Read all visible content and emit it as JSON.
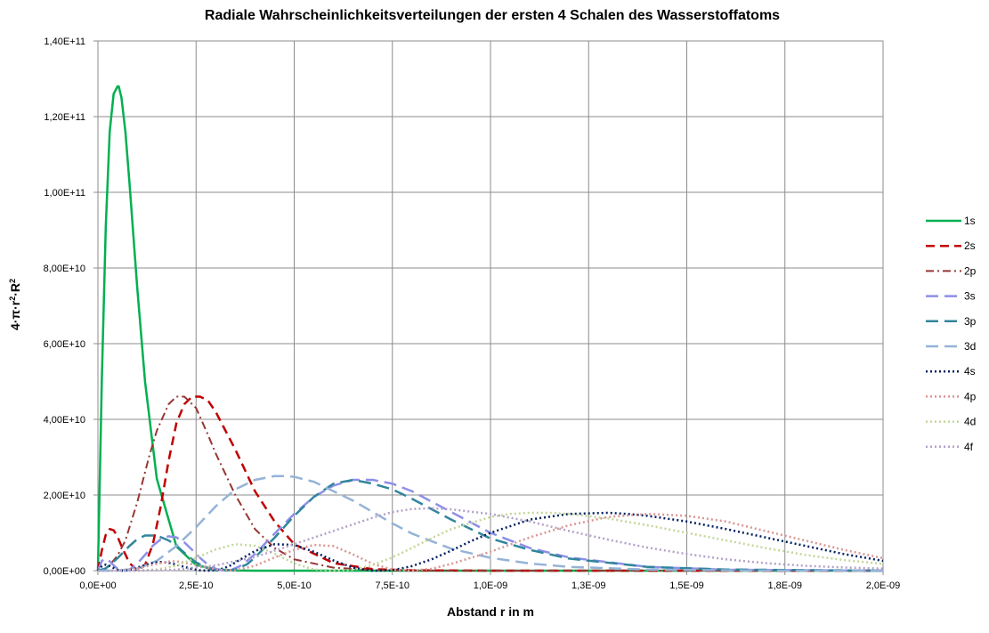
{
  "chart_data": {
    "type": "line",
    "title": "Radiale Wahrscheinlichkeitsverteilungen der ersten 4 Schalen des Wasserstoffatoms",
    "xlabel": "Abstand r in m",
    "ylabel_parts": [
      "4·π·r",
      "2",
      "·R",
      "2"
    ],
    "xlim": [
      0,
      2e-09
    ],
    "ylim": [
      0,
      140000000000.0
    ],
    "grid": true,
    "legend_position": "right",
    "x_ticks": [
      {
        "value": 0,
        "label": "0,0E+00"
      },
      {
        "value": 2.5e-10,
        "label": "2,5E-10"
      },
      {
        "value": 5e-10,
        "label": "5,0E-10"
      },
      {
        "value": 7.5e-10,
        "label": "7,5E-10"
      },
      {
        "value": 1e-09,
        "label": "1,0E-09"
      },
      {
        "value": 1.25e-09,
        "label": "1,3E-09"
      },
      {
        "value": 1.5e-09,
        "label": "1,5E-09"
      },
      {
        "value": 1.75e-09,
        "label": "1,8E-09"
      },
      {
        "value": 2e-09,
        "label": "2,0E-09"
      }
    ],
    "y_ticks": [
      {
        "value": 0,
        "label": "0,00E+00"
      },
      {
        "value": 20000000000.0,
        "label": "2,00E+10"
      },
      {
        "value": 40000000000.0,
        "label": "4,00E+10"
      },
      {
        "value": 60000000000.0,
        "label": "6,00E+10"
      },
      {
        "value": 80000000000.0,
        "label": "8,00E+10"
      },
      {
        "value": 100000000000.0,
        "label": "1,00E+11"
      },
      {
        "value": 120000000000.0,
        "label": "1,20E+11"
      },
      {
        "value": 140000000000.0,
        "label": "1,40E+11"
      }
    ],
    "series": [
      {
        "name": "1s",
        "color": "#00b050",
        "dash": "",
        "width": 2.5,
        "x": [
          0,
          1e-11,
          2e-11,
          3e-11,
          4e-11,
          5e-11,
          5.3e-11,
          6e-11,
          7e-11,
          8e-11,
          1e-10,
          1.2e-10,
          1.5e-10,
          2e-10,
          2.5e-10,
          3e-10,
          3.5e-10,
          4e-10,
          5e-10,
          7.5e-10,
          1e-09,
          2e-09
        ],
        "values": [
          0,
          50700000000.0,
          90900000000.0,
          116000000000.0,
          126000000000.0,
          128000000000.0,
          128000000000.0,
          125000000000.0,
          116000000000.0,
          103000000000.0,
          75000000000.0,
          50000000000.0,
          24300000000.0,
          6400000000.0,
          1500000000.0,
          320000000.0,
          60000000.0,
          10000000.0,
          0,
          0,
          0,
          0
        ]
      },
      {
        "name": "2s",
        "color": "#c00000",
        "dash": "10,6",
        "width": 2.5,
        "x": [
          0,
          1e-11,
          2e-11,
          3e-11,
          4e-11,
          5e-11,
          6e-11,
          8e-11,
          1e-10,
          1.2e-10,
          1.4e-10,
          1.6e-10,
          1.8e-10,
          2e-10,
          2.2e-10,
          2.4e-10,
          2.6e-10,
          2.8e-10,
          3e-10,
          3.5e-10,
          4e-10,
          4.5e-10,
          5e-10,
          6e-10,
          7e-10,
          8e-10,
          1e-09,
          2e-09
        ],
        "values": [
          0,
          5400000000.0,
          9500000000.0,
          11000000000.0,
          10700000000.0,
          9000000000.0,
          6500000000.0,
          2100000000.0,
          0,
          1500000000.0,
          7000000000.0,
          17000000000.0,
          29000000000.0,
          39000000000.0,
          44000000000.0,
          46000000000.0,
          46000000000.0,
          45000000000.0,
          42000000000.0,
          32000000000.0,
          21000000000.0,
          13000000000.0,
          7000000000.0,
          2000000000.0,
          400000000.0,
          100000000.0,
          0,
          0
        ]
      },
      {
        "name": "2p",
        "color": "#953735",
        "dash": "9,4,2,4",
        "width": 2,
        "x": [
          0,
          2e-11,
          5e-11,
          7e-11,
          1e-10,
          1.3e-10,
          1.5e-10,
          1.8e-10,
          2e-10,
          2.2e-10,
          2.5e-10,
          2.8e-10,
          3e-10,
          3.5e-10,
          4e-10,
          4.5e-10,
          5e-10,
          6e-10,
          7e-10,
          8e-10,
          1e-09,
          2e-09
        ],
        "values": [
          0,
          200000000.0,
          4000000000.0,
          8000000000.0,
          18000000000.0,
          30000000000.0,
          37000000000.0,
          44000000000.0,
          46000000000.0,
          46000000000.0,
          43000000000.0,
          36000000000.0,
          31000000000.0,
          20000000000.0,
          11000000000.0,
          6000000000.0,
          3000000000.0,
          800000000.0,
          150000000.0,
          30000000.0,
          0,
          0
        ]
      },
      {
        "name": "3s",
        "color": "#8e8ee8",
        "dash": "14,7",
        "width": 2.5,
        "x": [
          0,
          1e-11,
          2e-11,
          3e-11,
          4e-11,
          5e-11,
          6e-11,
          7e-11,
          8e-11,
          1e-10,
          1.2e-10,
          1.4e-10,
          1.6e-10,
          1.8e-10,
          2e-10,
          2.2e-10,
          2.4e-10,
          2.6e-10,
          2.8e-10,
          3e-10,
          3.2e-10,
          3.4e-10,
          3.6e-10,
          3.8e-10,
          4e-10,
          4.5e-10,
          5e-10,
          5.5e-10,
          6e-10,
          6.5e-10,
          7e-10,
          7.5e-10,
          8e-10,
          9e-10,
          1e-09,
          1.1e-09,
          1.2e-09,
          1.4e-09,
          1.6e-09,
          2e-09
        ],
        "values": [
          0,
          2600000000.0,
          3200000000.0,
          2500000000.0,
          1400000000.0,
          500000000.0,
          100000000.0,
          0,
          200000000.0,
          1800000000.0,
          4200000000.0,
          6600000000.0,
          8300000000.0,
          9100000000.0,
          8800000000.0,
          7500000000.0,
          5500000000.0,
          3400000000.0,
          1600000000.0,
          500000000.0,
          0,
          200000000.0,
          1100000000.0,
          2600000000.0,
          4400000000.0,
          9800000000.0,
          15000000000.0,
          19500000000.0,
          22500000000.0,
          24000000000.0,
          24000000000.0,
          23000000000.0,
          21000000000.0,
          15500000000.0,
          10000000000.0,
          6000000000.0,
          3500000000.0,
          1000000000.0,
          250000000.0,
          0
        ]
      },
      {
        "name": "3p",
        "color": "#31859c",
        "dash": "14,7",
        "width": 2.5,
        "x": [
          0,
          2e-11,
          5e-11,
          8e-11,
          1e-10,
          1.2e-10,
          1.5e-10,
          1.8e-10,
          2e-10,
          2.3e-10,
          2.5e-10,
          2.8e-10,
          3e-10,
          3.2e-10,
          3.5e-10,
          3.8e-10,
          4e-10,
          4.5e-10,
          5e-10,
          5.5e-10,
          6e-10,
          6.5e-10,
          7e-10,
          7.5e-10,
          8e-10,
          9e-10,
          1e-09,
          1.1e-09,
          1.2e-09,
          1.4e-09,
          1.6e-09,
          2e-09
        ],
        "values": [
          0,
          600000000.0,
          3300000000.0,
          6500000000.0,
          8300000000.0,
          9300000000.0,
          9300000000.0,
          8000000000.0,
          6600000000.0,
          3800000000.0,
          2200000000.0,
          600000000.0,
          100000000.0,
          0,
          300000000.0,
          1700000000.0,
          3500000000.0,
          8700000000.0,
          14500000000.0,
          19500000000.0,
          23000000000.0,
          24000000000.0,
          23000000000.0,
          21500000000.0,
          19000000000.0,
          13500000000.0,
          8500000000.0,
          5500000000.0,
          3200000000.0,
          1000000000.0,
          300000000.0,
          0
        ]
      },
      {
        "name": "3d",
        "color": "#95b3d7",
        "dash": "14,7",
        "width": 2.5,
        "x": [
          0,
          5e-11,
          1e-10,
          1.5e-10,
          2e-10,
          2.5e-10,
          3e-10,
          3.5e-10,
          4e-10,
          4.5e-10,
          4.8e-10,
          5e-10,
          5.5e-10,
          6e-10,
          6.5e-10,
          7e-10,
          7.5e-10,
          8e-10,
          9e-10,
          1e-09,
          1.1e-09,
          1.2e-09,
          1.4e-09,
          1.6e-09,
          1.8e-09,
          2e-09
        ],
        "values": [
          0,
          20000000.0,
          560000000.0,
          2600000000.0,
          6500000000.0,
          11500000000.0,
          17000000000.0,
          21500000000.0,
          24000000000.0,
          25000000000.0,
          25000000000.0,
          24800000000.0,
          23500000000.0,
          21000000000.0,
          18500000000.0,
          15500000000.0,
          12500000000.0,
          9800000000.0,
          5800000000.0,
          3400000000.0,
          1900000000.0,
          1000000000.0,
          300000000.0,
          80000000.0,
          20000000.0,
          0
        ]
      },
      {
        "name": "4s",
        "color": "#002060",
        "dash": "2,3",
        "width": 2.5,
        "x": [
          0,
          1e-11,
          2e-11,
          3e-11,
          4e-11,
          5e-11,
          6e-11,
          8e-11,
          1e-10,
          1.2e-10,
          1.4e-10,
          1.6e-10,
          1.8e-10,
          2e-10,
          2.2e-10,
          2.4e-10,
          2.6e-10,
          2.8e-10,
          3e-10,
          3.2e-10,
          3.4e-10,
          3.6e-10,
          4e-10,
          4.5e-10,
          5e-10,
          5.5e-10,
          6e-10,
          6.5e-10,
          7e-10,
          7.5e-10,
          8e-10,
          8.5e-10,
          9e-10,
          9.5e-10,
          1e-09,
          1.1e-09,
          1.2e-09,
          1.3e-09,
          1.35e-09,
          1.4e-09,
          1.5e-09,
          1.6e-09,
          1.7e-09,
          1.8e-09,
          1.9e-09,
          2e-09
        ],
        "values": [
          0,
          1200000000.0,
          1600000000.0,
          1300000000.0,
          700000000.0,
          200000000.0,
          0,
          200000000.0,
          800000000.0,
          1500000000.0,
          2100000000.0,
          2300000000.0,
          2100000000.0,
          1600000000.0,
          1000000000.0,
          450000000.0,
          100000000.0,
          0,
          100000000.0,
          600000000.0,
          1500000000.0,
          2800000000.0,
          5200000000.0,
          7000000000.0,
          6800000000.0,
          5000000000.0,
          2700000000.0,
          800000000.0,
          0,
          100000000.0,
          1200000000.0,
          3000000000.0,
          5300000000.0,
          7800000000.0,
          10000000000.0,
          13500000000.0,
          15000000000.0,
          15300000000.0,
          15000000000.0,
          14500000000.0,
          13000000000.0,
          11000000000.0,
          8800000000.0,
          6600000000.0,
          4400000000.0,
          2600000000.0
        ]
      },
      {
        "name": "4p",
        "color": "#d99694",
        "dash": "2,3",
        "width": 2.5,
        "x": [
          0,
          5e-11,
          1e-10,
          1.5e-10,
          1.8e-10,
          2e-10,
          2.5e-10,
          3e-10,
          3.5e-10,
          4e-10,
          4.5e-10,
          5e-10,
          5.5e-10,
          6e-10,
          6.5e-10,
          7e-10,
          7.5e-10,
          8e-10,
          8.5e-10,
          9e-10,
          1e-09,
          1.1e-09,
          1.2e-09,
          1.3e-09,
          1.4e-09,
          1.5e-09,
          1.6e-09,
          1.7e-09,
          1.8e-09,
          1.9e-09,
          2e-09
        ],
        "values": [
          0,
          100000000.0,
          600000000.0,
          1800000000.0,
          2400000000.0,
          2500000000.0,
          1500000000.0,
          300000000.0,
          100000000.0,
          1300000000.0,
          3500000000.0,
          5500000000.0,
          6800000000.0,
          6500000000.0,
          4300000000.0,
          1800000000.0,
          300000000.0,
          0,
          500000000.0,
          1800000000.0,
          5000000000.0,
          8800000000.0,
          12000000000.0,
          14200000000.0,
          15000000000.0,
          14500000000.0,
          13000000000.0,
          10500000000.0,
          8000000000.0,
          5500000000.0,
          3300000000.0
        ]
      },
      {
        "name": "4d",
        "color": "#c3d69b",
        "dash": "2,3",
        "width": 2.5,
        "x": [
          0,
          1e-10,
          1.5e-10,
          2e-10,
          2.5e-10,
          3e-10,
          3.5e-10,
          4e-10,
          4.5e-10,
          5e-10,
          5.5e-10,
          6e-10,
          6.5e-10,
          7e-10,
          7.5e-10,
          8e-10,
          8.5e-10,
          9e-10,
          1e-09,
          1.05e-09,
          1.1e-09,
          1.15e-09,
          1.2e-09,
          1.3e-09,
          1.4e-09,
          1.5e-09,
          1.6e-09,
          1.7e-09,
          1.8e-09,
          1.9e-09,
          2e-09
        ],
        "values": [
          0,
          30000000.0,
          300000000.0,
          1300000000.0,
          3400000000.0,
          5600000000.0,
          7000000000.0,
          6600000000.0,
          4500000000.0,
          1900000000.0,
          300000000.0,
          0,
          200000000.0,
          1500000000.0,
          3500000000.0,
          6000000000.0,
          8600000000.0,
          11000000000.0,
          14200000000.0,
          15000000000.0,
          15300000000.0,
          15300000000.0,
          15000000000.0,
          13800000000.0,
          12000000000.0,
          10000000000.0,
          8000000000.0,
          6000000000.0,
          4200000000.0,
          2800000000.0,
          1800000000.0
        ]
      },
      {
        "name": "4f",
        "color": "#b3a2c7",
        "dash": "2,3",
        "width": 2.5,
        "x": [
          0,
          1e-10,
          2e-10,
          3e-10,
          4e-10,
          5e-10,
          6e-10,
          7e-10,
          7.5e-10,
          8e-10,
          8.5e-10,
          9e-10,
          1e-09,
          1.1e-09,
          1.2e-09,
          1.3e-09,
          1.4e-09,
          1.5e-09,
          1.6e-09,
          1.7e-09,
          1.8e-09,
          1.9e-09,
          2e-09
        ],
        "values": [
          0,
          10000000.0,
          250000000.0,
          1400000000.0,
          3600000000.0,
          7000000000.0,
          10500000000.0,
          14000000000.0,
          15500000000.0,
          16300000000.0,
          16500000000.0,
          16200000000.0,
          15000000000.0,
          13000000000.0,
          10500000000.0,
          8200000000.0,
          6100000000.0,
          4400000000.0,
          3000000000.0,
          2000000000.0,
          1300000000.0,
          850000000.0,
          550000000.0
        ]
      }
    ]
  }
}
